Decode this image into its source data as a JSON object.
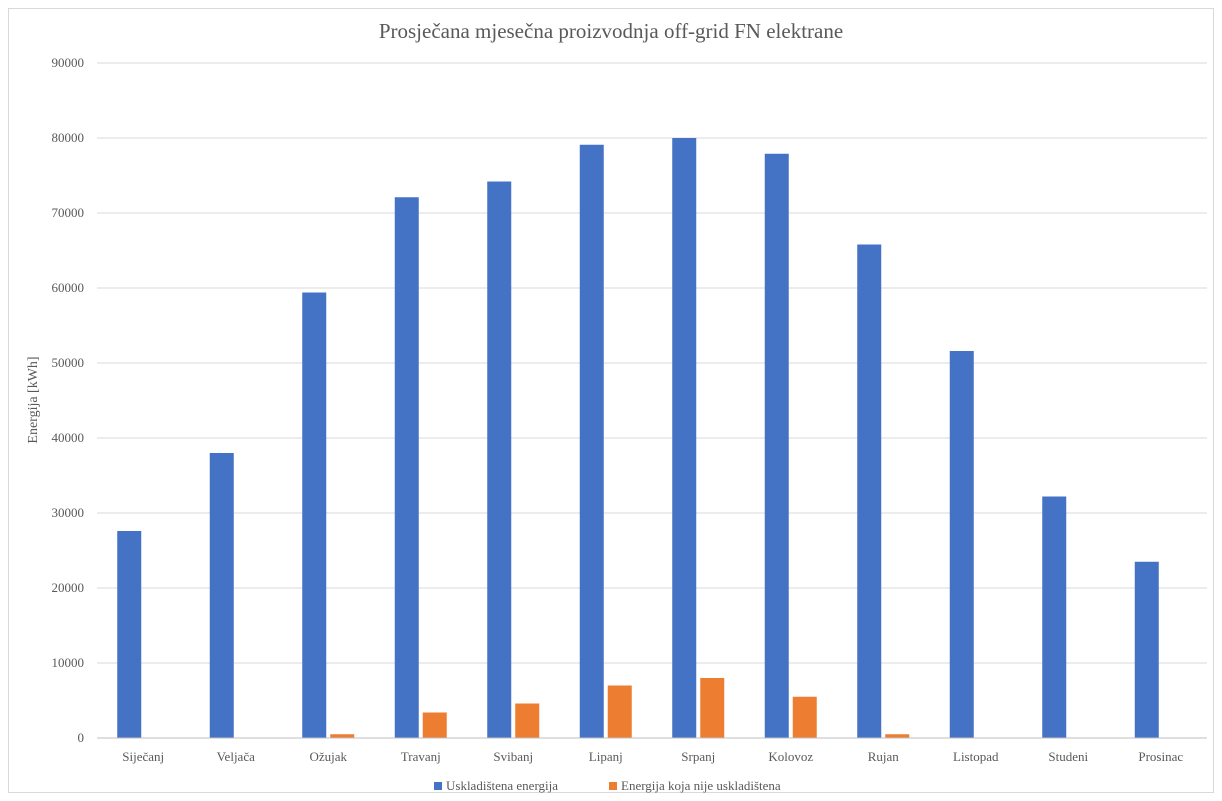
{
  "chart_data": {
    "type": "bar",
    "title": "Prosječana mjesečna proizvodnja off-grid FN elektrane",
    "xlabel": "",
    "ylabel": "Energija [kWh]",
    "ylim": [
      0,
      90000
    ],
    "yticks": [
      0,
      10000,
      20000,
      30000,
      40000,
      50000,
      60000,
      70000,
      80000,
      90000
    ],
    "grid": true,
    "legend_position": "bottom",
    "categories": [
      "Siječanj",
      "Veljača",
      "Ožujak",
      "Travanj",
      "Svibanj",
      "Lipanj",
      "Srpanj",
      "Kolovoz",
      "Rujan",
      "Listopad",
      "Studeni",
      "Prosinac"
    ],
    "series": [
      {
        "name": "Uskladištena energija",
        "color": "#4472c4",
        "values": [
          27600,
          38000,
          59400,
          72100,
          74200,
          79100,
          80000,
          77900,
          65800,
          51600,
          32200,
          23500
        ]
      },
      {
        "name": "Energija koja nije uskladištena",
        "color": "#ed7d31",
        "values": [
          0,
          0,
          500,
          3400,
          4600,
          7000,
          8000,
          5500,
          500,
          0,
          0,
          0
        ]
      }
    ]
  }
}
